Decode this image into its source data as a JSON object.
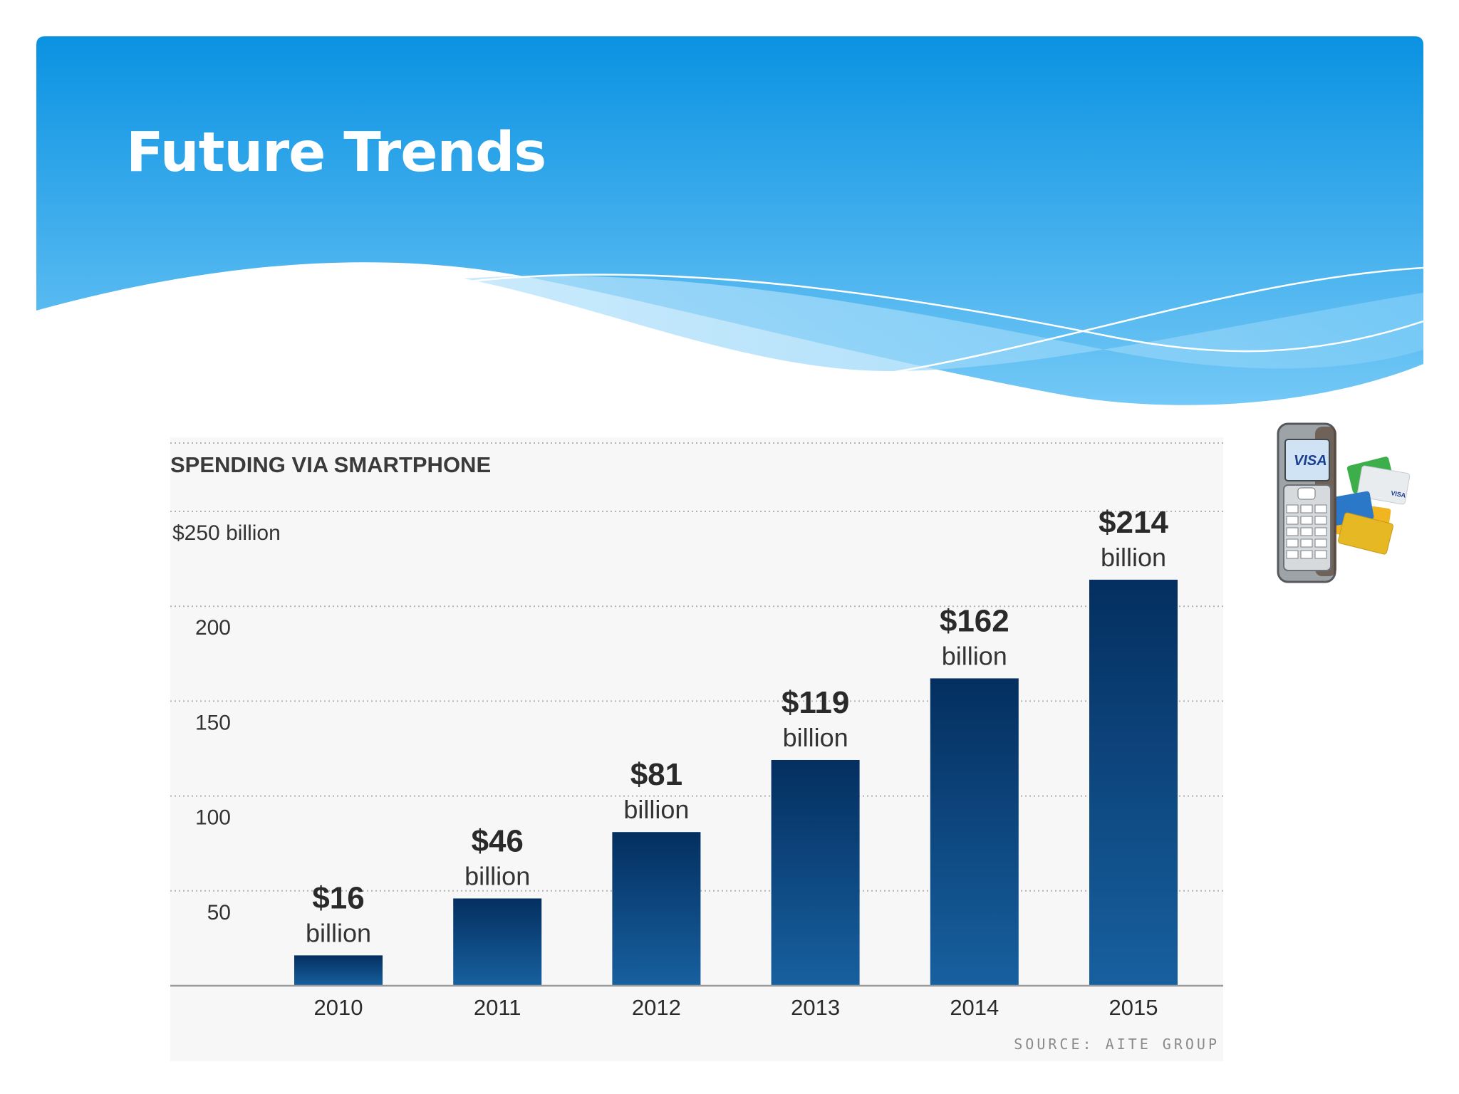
{
  "slide": {
    "title": "Future Trends"
  },
  "chart_data": {
    "type": "bar",
    "title": "SPENDING VIA SMARTPHONE",
    "categories": [
      "2010",
      "2011",
      "2012",
      "2013",
      "2014",
      "2015"
    ],
    "values": [
      16,
      46,
      81,
      119,
      162,
      214
    ],
    "value_labels": [
      "$16",
      "$46",
      "$81",
      "$119",
      "$162",
      "$214"
    ],
    "value_unit": "billion",
    "ylim": [
      0,
      250
    ],
    "yticks": [
      {
        "value": 50,
        "label": "50"
      },
      {
        "value": 100,
        "label": "100"
      },
      {
        "value": 150,
        "label": "150"
      },
      {
        "value": 200,
        "label": "200"
      },
      {
        "value": 250,
        "label": "$250 billion"
      }
    ],
    "grid": true,
    "bar_color": "#0f4e8c",
    "source": "SOURCE: AITE GROUP"
  },
  "decoration": {
    "phone_icon": "mobile-phone-with-visa-cards",
    "phone_screen_text": "VISA",
    "card_text": "VISA"
  },
  "colors": {
    "header_top": "#0a92e2",
    "header_bottom": "#6cc5f5",
    "bar_top": "#042f60",
    "bar_bottom": "#17609f"
  }
}
